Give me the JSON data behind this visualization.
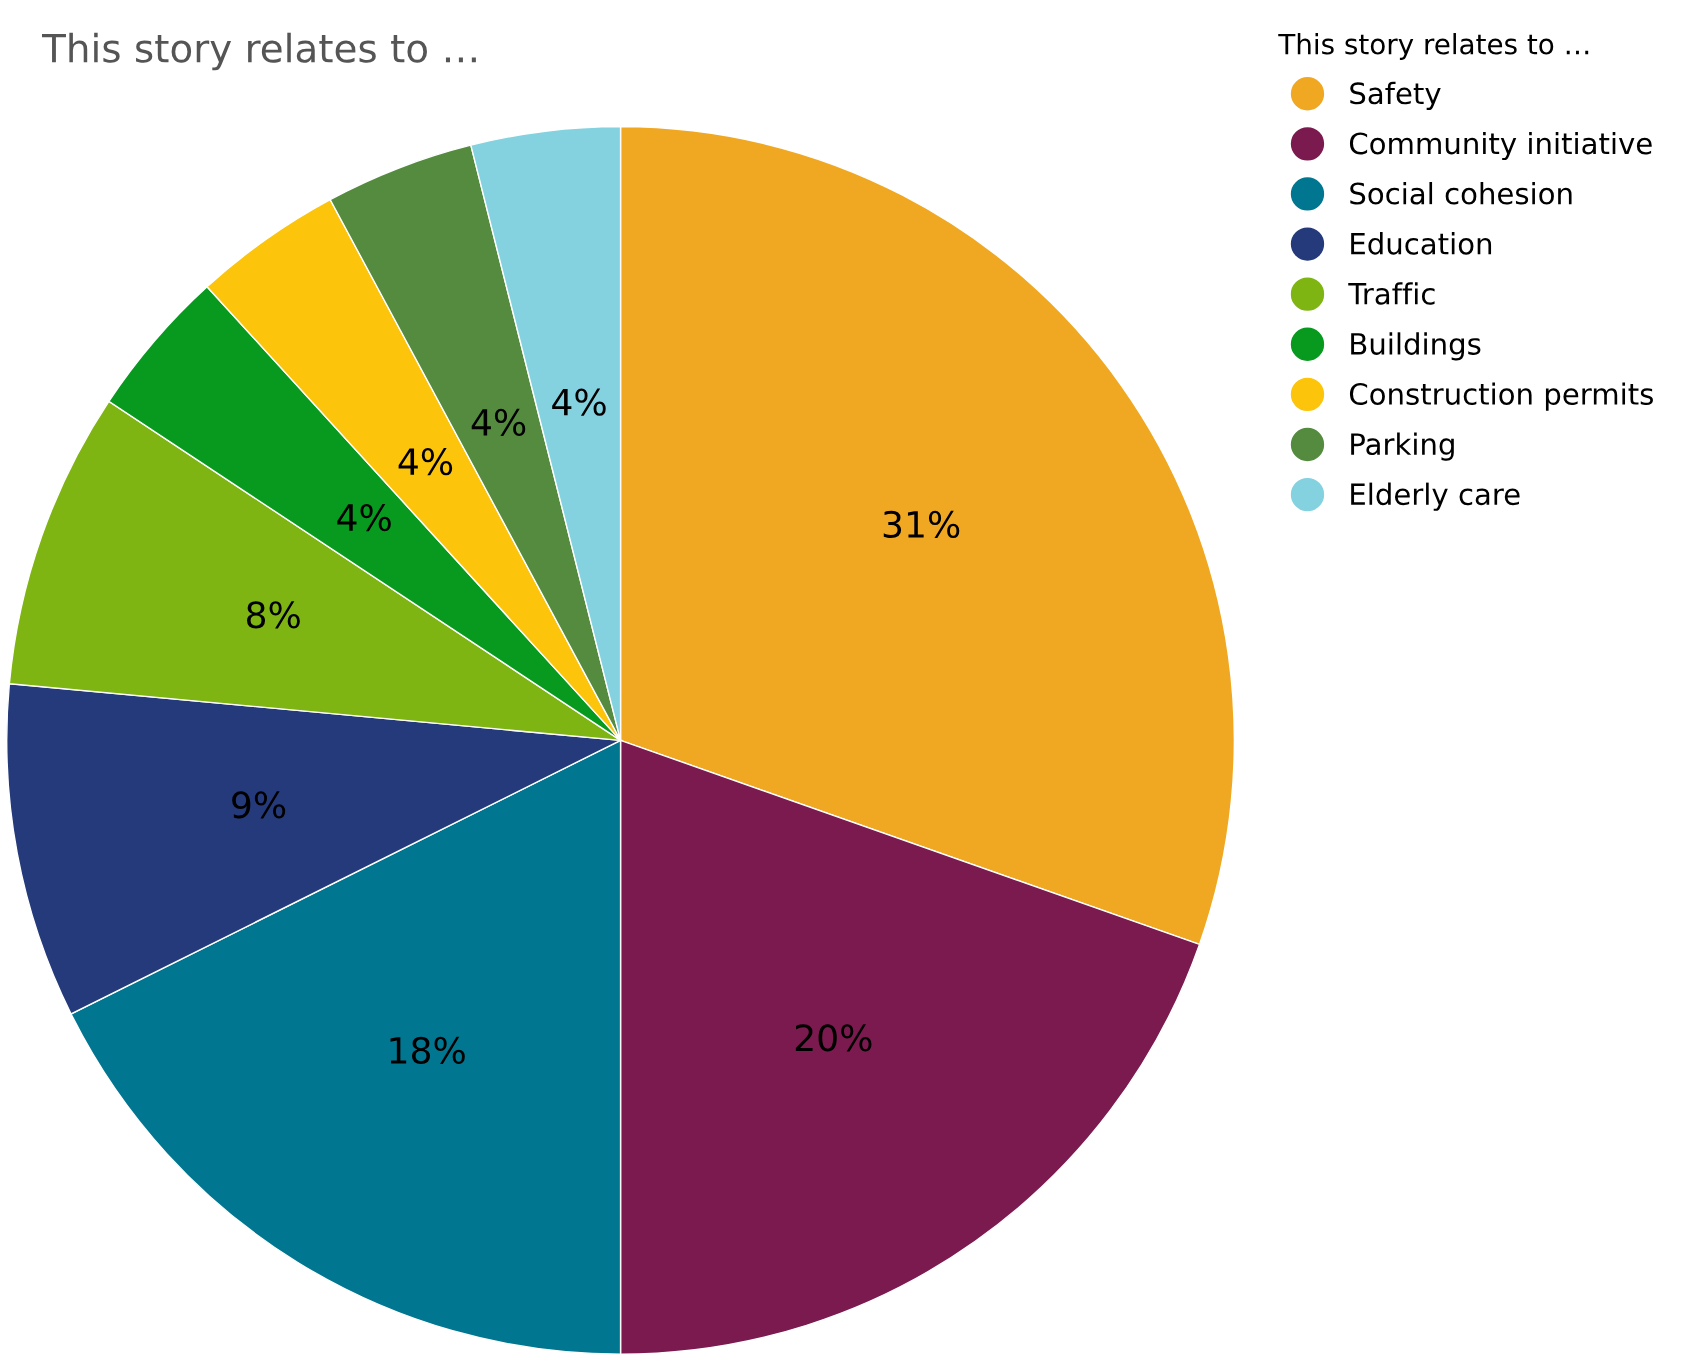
{
  "chart_data": {
    "type": "pie",
    "title": "This story relates to …",
    "legend_title": "This story relates to …",
    "categories": [
      "Safety",
      "Community initiative",
      "Social cohesion",
      "Education",
      "Traffic",
      "Buildings",
      "Construction permits",
      "Parking",
      "Elderly care"
    ],
    "values": [
      31,
      20,
      18,
      9,
      8,
      4,
      4,
      4,
      4
    ],
    "colors": [
      "#f0a823",
      "#7a1a4e",
      "#007690",
      "#243a7b",
      "#7fb512",
      "#079a1e",
      "#fcc40a",
      "#548b3f",
      "#84d1df"
    ],
    "value_labels": [
      "31%",
      "20%",
      "18%",
      "9%",
      "8%",
      "4%",
      "4%",
      "4%",
      "4%"
    ],
    "legend": "top right"
  }
}
